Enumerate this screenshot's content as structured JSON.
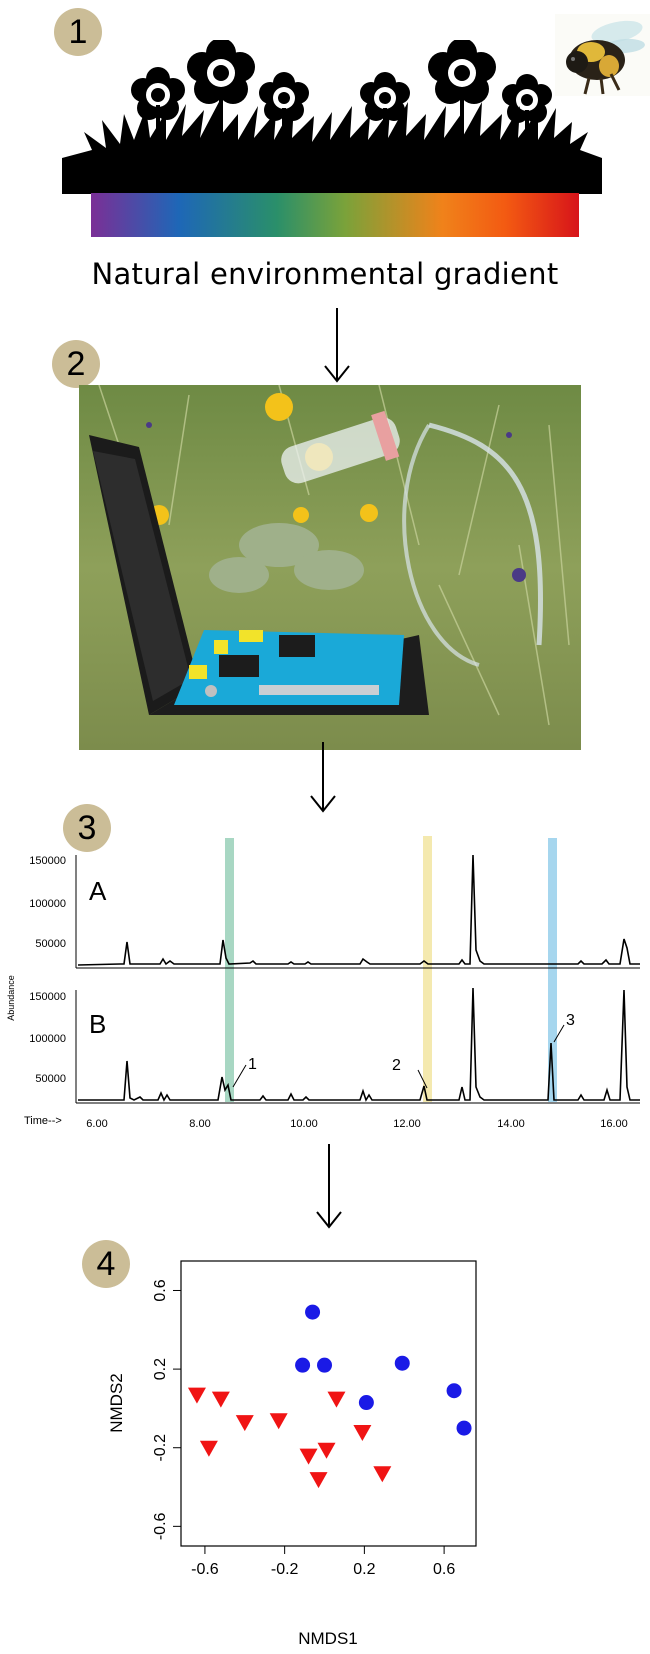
{
  "steps": [
    {
      "number": "1"
    },
    {
      "number": "2"
    },
    {
      "number": "3"
    },
    {
      "number": "4"
    }
  ],
  "panel1": {
    "caption": "Natural environmental gradient",
    "gradient_colors": [
      "#7b2f96",
      "#1e67b7",
      "#2a8f6a",
      "#7aa23a",
      "#f0821a",
      "#f35a12",
      "#d7141a"
    ]
  },
  "panel3": {
    "y_axis_label": "Abundance",
    "x_axis_label": "Time-->",
    "y_ticks": [
      "150000",
      "100000",
      "50000"
    ],
    "x_ticks": [
      "6.00",
      "8.00",
      "10.00",
      "12.00",
      "14.00",
      "16.00"
    ],
    "trace_labels": [
      "A",
      "B"
    ],
    "peak_labels": [
      "1",
      "2",
      "3"
    ],
    "highlight_colors": [
      "#9fd3bd",
      "#f3e7a6",
      "#9cd2ec"
    ]
  },
  "chart_data": {
    "type": "scatter",
    "xlabel": "NMDS1",
    "ylabel": "NMDS2",
    "xlim": [
      -0.72,
      0.76
    ],
    "ylim": [
      -0.7,
      0.75
    ],
    "x_ticks": [
      "-0.6",
      "-0.2",
      "0.2",
      "0.6"
    ],
    "y_ticks": [
      "0.6",
      "0.2",
      "-0.2",
      "-0.6"
    ],
    "series": [
      {
        "marker": "circle",
        "color": "#1a1ae6",
        "points": [
          [
            -0.06,
            0.49
          ],
          [
            -0.11,
            0.22
          ],
          [
            0.0,
            0.22
          ],
          [
            0.21,
            0.03
          ],
          [
            0.39,
            0.23
          ],
          [
            0.65,
            0.09
          ],
          [
            0.7,
            -0.1
          ]
        ]
      },
      {
        "marker": "triangle-down",
        "color": "#f01414",
        "points": [
          [
            -0.64,
            0.07
          ],
          [
            -0.52,
            0.05
          ],
          [
            -0.58,
            -0.2
          ],
          [
            -0.4,
            -0.07
          ],
          [
            -0.23,
            -0.06
          ],
          [
            -0.08,
            -0.24
          ],
          [
            0.01,
            -0.21
          ],
          [
            0.06,
            0.05
          ],
          [
            -0.03,
            -0.36
          ],
          [
            0.19,
            -0.12
          ],
          [
            0.29,
            -0.33
          ]
        ]
      }
    ]
  }
}
